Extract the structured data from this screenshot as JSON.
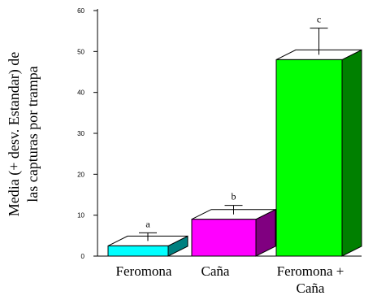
{
  "chart_data": {
    "type": "bar",
    "style": "3d",
    "ylabel_lines": [
      "Media (+ desv. Estandar) de",
      "las capturas por trampa"
    ],
    "ylim": [
      0,
      60
    ],
    "yticks": [
      "0",
      "10",
      "20",
      "30",
      "40",
      "50",
      "60"
    ],
    "categories": [
      [
        "Feromona"
      ],
      [
        "Caña"
      ],
      [
        "Feromona +",
        "Caña"
      ]
    ],
    "values": [
      2.5,
      9,
      48
    ],
    "error": [
      2.0,
      2.2,
      6.5
    ],
    "annotations": [
      "a",
      "b",
      "c"
    ],
    "colors": {
      "front": [
        "#00ffff",
        "#ff00ff",
        "#00ff00"
      ],
      "side": [
        "#008080",
        "#800080",
        "#008000"
      ],
      "top": [
        "#ffffff",
        "#ffffff",
        "#ffffff"
      ],
      "outline": "#000000"
    },
    "grid": false,
    "legend": "none"
  }
}
